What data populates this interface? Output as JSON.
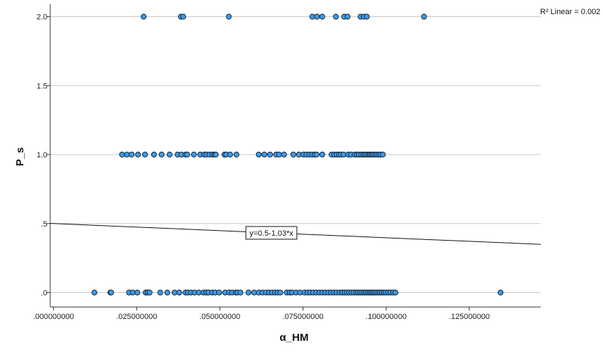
{
  "chart_data": {
    "type": "scatter",
    "title": "",
    "xlabel": "α_HM",
    "ylabel": "P_s",
    "xlim": [
      -0.001,
      0.1465
    ],
    "ylim": [
      -0.105,
      2.09
    ],
    "x_ticks": [
      ".000000000",
      ".025000000",
      ".050000000",
      ".075000000",
      ".100000000",
      ".125000000"
    ],
    "x_tick_values": [
      0.0,
      0.025,
      0.05,
      0.075,
      0.1,
      0.125
    ],
    "y_ticks": [
      ".0",
      ".5",
      "1.0",
      "1.5",
      "2.0"
    ],
    "y_tick_values": [
      0,
      0.5,
      1.0,
      1.5,
      2.0
    ],
    "grid": "horizontal",
    "r2_label": "R² Linear = 0.002",
    "fit_line": {
      "equation": "y=0.5-1.03*x",
      "intercept": 0.5,
      "slope": -1.03,
      "label_x": 0.0655
    },
    "marker_color": "#3d9be9",
    "marker_edge": "#1a2530",
    "series": [
      {
        "y": 2.0,
        "x": [
          0.0271,
          0.0383,
          0.039,
          0.0527,
          0.0778,
          0.0792,
          0.0808,
          0.0849,
          0.0874,
          0.0884,
          0.0923,
          0.0933,
          0.0942,
          0.1114
        ]
      },
      {
        "y": 1.0,
        "x": [
          0.0206,
          0.0221,
          0.0235,
          0.0254,
          0.0275,
          0.0302,
          0.0325,
          0.0349,
          0.0373,
          0.0384,
          0.0397,
          0.0402,
          0.0422,
          0.0441,
          0.0453,
          0.046,
          0.0469,
          0.0478,
          0.0484,
          0.0488,
          0.0514,
          0.0519,
          0.0531,
          0.055,
          0.0617,
          0.0634,
          0.0651,
          0.0669,
          0.0678,
          0.0693,
          0.0721,
          0.0738,
          0.0751,
          0.076,
          0.0769,
          0.0777,
          0.0785,
          0.0791,
          0.0808,
          0.0836,
          0.0844,
          0.0851,
          0.0858,
          0.0864,
          0.0872,
          0.0886,
          0.0894,
          0.0905,
          0.0912,
          0.0918,
          0.0925,
          0.0931,
          0.0936,
          0.0941,
          0.0947,
          0.0951,
          0.0956,
          0.096,
          0.0966,
          0.0971,
          0.0977,
          0.0983,
          0.099
        ]
      },
      {
        "y": 0.0,
        "x": [
          0.0123,
          0.0171,
          0.0173,
          0.0227,
          0.0238,
          0.0252,
          0.0277,
          0.0283,
          0.0289,
          0.0321,
          0.0342,
          0.0364,
          0.0378,
          0.0397,
          0.0404,
          0.0413,
          0.0424,
          0.0437,
          0.0451,
          0.0459,
          0.0466,
          0.0477,
          0.0486,
          0.0498,
          0.0516,
          0.0528,
          0.0537,
          0.0548,
          0.0553,
          0.0562,
          0.0586,
          0.0603,
          0.0617,
          0.0628,
          0.0639,
          0.0648,
          0.0657,
          0.0666,
          0.0674,
          0.0682,
          0.0701,
          0.071,
          0.0717,
          0.0729,
          0.0741,
          0.0755,
          0.0764,
          0.0772,
          0.0781,
          0.079,
          0.0799,
          0.0808,
          0.0817,
          0.0826,
          0.0834,
          0.0843,
          0.0851,
          0.086,
          0.0868,
          0.0875,
          0.0882,
          0.0889,
          0.0896,
          0.0903,
          0.091,
          0.0916,
          0.0922,
          0.0928,
          0.0934,
          0.0939,
          0.0945,
          0.095,
          0.0955,
          0.096,
          0.0965,
          0.097,
          0.0976,
          0.0981,
          0.0987,
          0.0993,
          0.0999,
          0.1006,
          0.1013,
          0.1021,
          0.1028,
          0.1344
        ]
      }
    ]
  }
}
